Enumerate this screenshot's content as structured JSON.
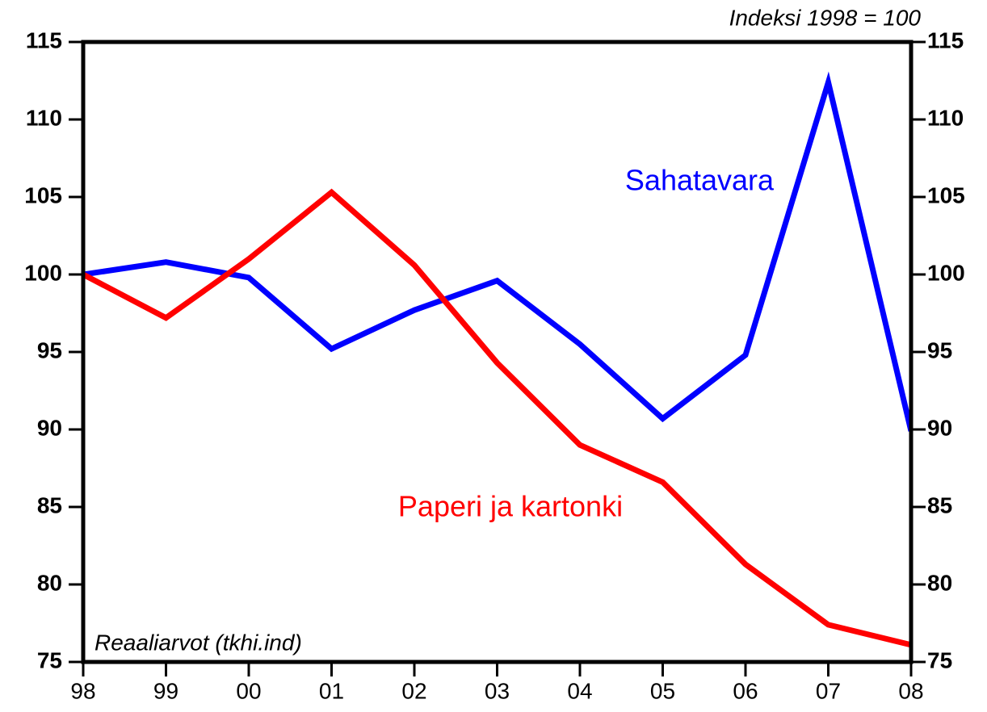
{
  "chart_data": {
    "type": "line",
    "y_axis_label": "Indeksi 1998 = 100",
    "note": "Reaaliarvot (tkhi.ind)",
    "categories": [
      "98",
      "99",
      "00",
      "01",
      "02",
      "03",
      "04",
      "05",
      "06",
      "07",
      "08"
    ],
    "series": [
      {
        "name": "Sahatavara",
        "color": "#0000ff",
        "values": [
          100,
          100.8,
          99.8,
          95.2,
          97.7,
          99.6,
          95.5,
          90.7,
          94.8,
          112.4,
          89.9
        ]
      },
      {
        "name": "Paperi ja kartonki",
        "color": "#ff0000",
        "values": [
          100,
          97.2,
          101.0,
          105.3,
          100.6,
          94.3,
          89.0,
          86.6,
          81.3,
          77.4,
          76.1
        ]
      }
    ],
    "ylim": [
      75,
      115
    ],
    "yticks": [
      75,
      80,
      85,
      90,
      95,
      100,
      105,
      110,
      115
    ],
    "y2lim": [
      75,
      115
    ],
    "y2ticks": [
      75,
      80,
      85,
      90,
      95,
      100,
      105,
      110,
      115
    ],
    "grid": false
  }
}
